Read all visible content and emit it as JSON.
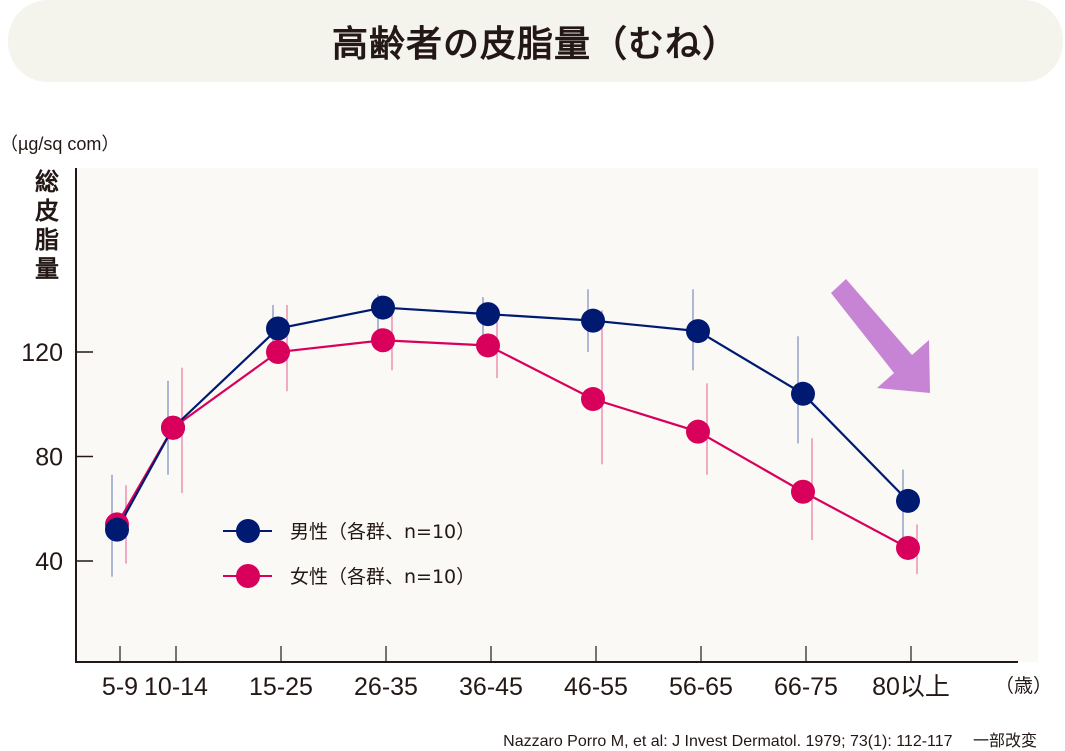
{
  "title": "高齢者の皮脂量（むね）",
  "unit_label": "（µg/sq com）",
  "ylabel_chars": [
    "総",
    "皮",
    "脂",
    "量"
  ],
  "x_unit_label": "（歳）",
  "citation": "Nazzaro Porro M, et al: J Invest Dermatol. 1979; 73(1): 112-117　 一部改変",
  "colors": {
    "male": "#001a72",
    "male_errorbar": "#9aa6cc",
    "female": "#d9005b",
    "female_errorbar": "#ee97b8",
    "arrow": "#c784d4",
    "plot_bg": "#faf9f6",
    "banner_bg": "#f4f3ec"
  },
  "legend": [
    {
      "label": "男性（各群、n=10）",
      "series": "male"
    },
    {
      "label": "女性（各群、n=10）",
      "series": "female"
    }
  ],
  "chart_data": {
    "type": "line",
    "title": "高齢者の皮脂量（むね）",
    "xlabel": "（歳）",
    "ylabel": "総皮脂量（µg/sq com）",
    "categories": [
      "5-9",
      "10-14",
      "15-25",
      "26-35",
      "36-45",
      "46-55",
      "56-65",
      "66-75",
      "80以上"
    ],
    "yticks": [
      40,
      80,
      120
    ],
    "ylim": [
      0,
      190
    ],
    "grid": false,
    "legend_position": "lower-left inside",
    "series": [
      {
        "name": "男性（各群、n=10）",
        "values": [
          52,
          91,
          129,
          137,
          134.5,
          132,
          128,
          104,
          63
        ],
        "error_low": [
          34,
          73,
          120,
          125,
          123,
          120,
          113,
          85,
          45
        ],
        "error_high": [
          73,
          109,
          138,
          142,
          141,
          144,
          144,
          126,
          75
        ]
      },
      {
        "name": "女性（各群、n=10）",
        "values": [
          54,
          91,
          120,
          124.5,
          122.5,
          102,
          89.5,
          66.5,
          45
        ],
        "error_low": [
          39,
          66,
          105,
          113,
          110,
          77,
          73,
          48,
          35
        ],
        "error_high": [
          69,
          114,
          138,
          136,
          134,
          136,
          108,
          87,
          54
        ]
      }
    ],
    "annotations": [
      "downward arrow indicating decline after 66-75 / 80以上"
    ]
  }
}
